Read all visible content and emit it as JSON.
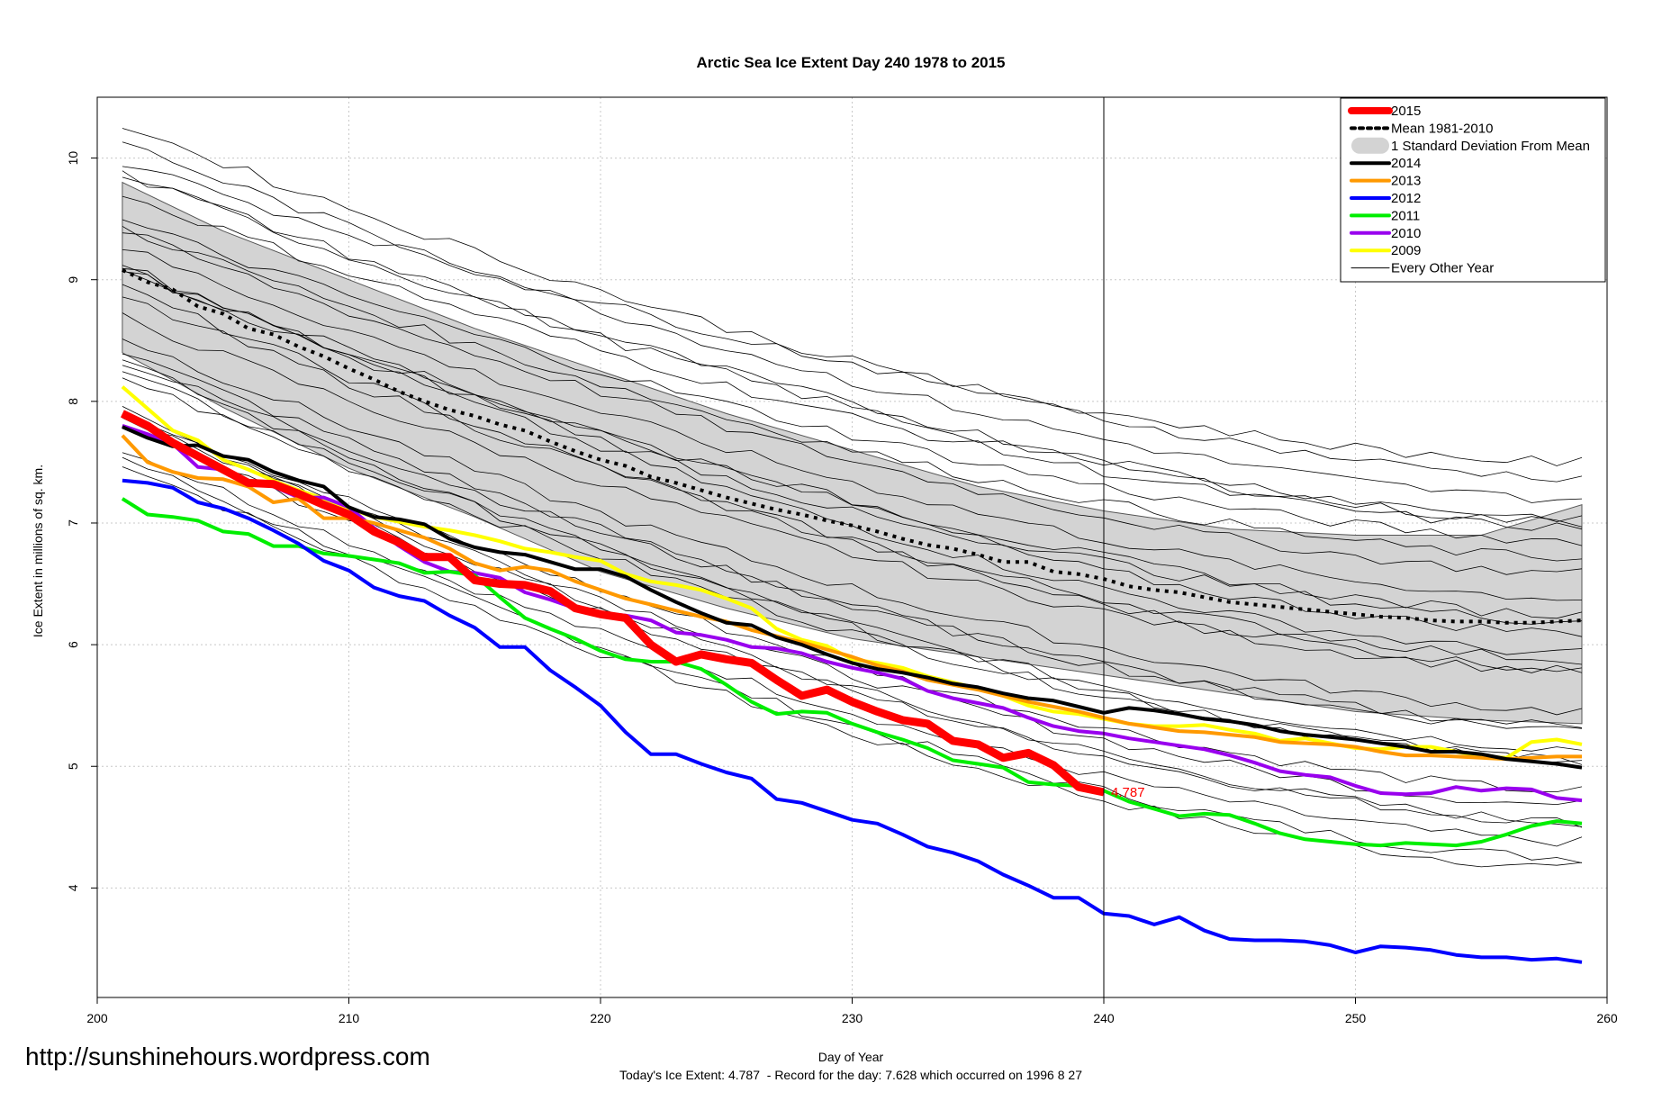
{
  "watermark": "http://sunshinehours.wordpress.com",
  "footer_line": "Today's Ice Extent: 4.787  - Record for the day: 7.628 which occurred on 1996 8 27",
  "colors": {
    "y2015": "#ff0000",
    "y2014": "#000000",
    "y2013": "#ff9900",
    "y2012": "#0000ff",
    "y2011": "#00ee00",
    "y2010": "#9900ee",
    "y2009": "#ffff00",
    "band": "#d3d3d3",
    "other": "#000000"
  },
  "chart_data": {
    "type": "line",
    "title": "Arctic Sea Ice Extent Day 240 1978 to 2015",
    "xlabel": "Day of Year",
    "ylabel": "Ice Extent in millions of sq. km.",
    "xlim": [
      200,
      260
    ],
    "ylim": [
      3.1,
      10.5
    ],
    "xticks": [
      200,
      210,
      220,
      230,
      240,
      250,
      260
    ],
    "yticks": [
      4,
      5,
      6,
      7,
      8,
      9,
      10
    ],
    "grid": true,
    "vline": 240,
    "annotation": {
      "x": 240,
      "y": 4.787,
      "text": "4.787"
    },
    "legend_position": "top-right",
    "legend": [
      "2015",
      "Mean 1981-2010",
      "1 Standard Deviation From Mean",
      "2014",
      "2013",
      "2012",
      "2011",
      "2010",
      "2009",
      "Every Other Year"
    ],
    "band": {
      "name": "1 Standard Deviation From Mean",
      "x": [
        201,
        205,
        210,
        215,
        220,
        225,
        230,
        235,
        240,
        245,
        250,
        255,
        259
      ],
      "upper": [
        9.8,
        9.4,
        9.0,
        8.6,
        8.25,
        7.9,
        7.6,
        7.3,
        7.1,
        6.95,
        6.9,
        6.9,
        7.15
      ],
      "lower": [
        8.4,
        7.95,
        7.45,
        7.05,
        6.6,
        6.3,
        6.05,
        5.9,
        5.75,
        5.6,
        5.45,
        5.38,
        5.35
      ]
    },
    "series": [
      {
        "name": "Mean 1981-2010",
        "x": [
          201,
          202,
          203,
          204,
          205,
          206,
          207,
          208,
          209,
          210,
          211,
          212,
          213,
          214,
          215,
          216,
          217,
          218,
          219,
          220,
          221,
          222,
          223,
          224,
          225,
          226,
          227,
          228,
          229,
          230,
          231,
          232,
          233,
          234,
          235,
          236,
          237,
          238,
          239,
          240,
          241,
          242,
          243,
          244,
          245,
          246,
          247,
          248,
          249,
          250,
          251,
          252,
          253,
          254,
          255,
          256,
          257,
          258,
          259
        ],
        "y": [
          9.08,
          8.98,
          8.92,
          8.78,
          8.72,
          8.6,
          8.55,
          8.45,
          8.37,
          8.27,
          8.18,
          8.08,
          8.0,
          7.93,
          7.88,
          7.81,
          7.76,
          7.67,
          7.59,
          7.52,
          7.47,
          7.38,
          7.33,
          7.27,
          7.21,
          7.16,
          7.11,
          7.07,
          7.02,
          6.98,
          6.93,
          6.87,
          6.82,
          6.79,
          6.74,
          6.68,
          6.68,
          6.6,
          6.58,
          6.54,
          6.48,
          6.45,
          6.43,
          6.39,
          6.35,
          6.33,
          6.31,
          6.29,
          6.27,
          6.25,
          6.23,
          6.22,
          6.2,
          6.19,
          6.19,
          6.18,
          6.18,
          6.19,
          6.2
        ]
      },
      {
        "name": "2014",
        "x": [
          201,
          202,
          203,
          204,
          205,
          206,
          207,
          208,
          209,
          210,
          211,
          212,
          213,
          214,
          215,
          216,
          217,
          218,
          219,
          220,
          221,
          222,
          223,
          224,
          225,
          226,
          227,
          228,
          229,
          230,
          231,
          232,
          233,
          234,
          235,
          236,
          237,
          238,
          239,
          240,
          241,
          242,
          243,
          244,
          245,
          246,
          247,
          248,
          249,
          250,
          251,
          252,
          253,
          254,
          255,
          256,
          257,
          258,
          259
        ],
        "y": [
          7.79,
          7.7,
          7.63,
          7.64,
          7.55,
          7.52,
          7.42,
          7.35,
          7.3,
          7.13,
          7.05,
          7.03,
          6.99,
          6.87,
          6.8,
          6.76,
          6.74,
          6.68,
          6.62,
          6.62,
          6.56,
          6.45,
          6.35,
          6.26,
          6.18,
          6.16,
          6.06,
          6.0,
          5.92,
          5.85,
          5.8,
          5.77,
          5.73,
          5.68,
          5.65,
          5.6,
          5.56,
          5.54,
          5.49,
          5.44,
          5.48,
          5.46,
          5.43,
          5.39,
          5.37,
          5.34,
          5.29,
          5.26,
          5.24,
          5.22,
          5.19,
          5.16,
          5.12,
          5.12,
          5.1,
          5.06,
          5.04,
          5.02,
          4.99
        ]
      },
      {
        "name": "2013",
        "x": [
          201,
          202,
          203,
          204,
          205,
          206,
          207,
          208,
          209,
          210,
          211,
          212,
          213,
          214,
          215,
          216,
          217,
          218,
          219,
          220,
          221,
          222,
          223,
          224,
          225,
          226,
          227,
          228,
          229,
          230,
          231,
          232,
          233,
          234,
          235,
          236,
          237,
          238,
          239,
          240,
          241,
          242,
          243,
          244,
          245,
          246,
          247,
          248,
          249,
          250,
          251,
          252,
          253,
          254,
          255,
          256,
          257,
          258,
          259
        ],
        "y": [
          7.72,
          7.5,
          7.42,
          7.37,
          7.36,
          7.3,
          7.17,
          7.2,
          7.04,
          7.04,
          7.0,
          6.94,
          6.88,
          6.79,
          6.67,
          6.61,
          6.64,
          6.61,
          6.52,
          6.45,
          6.38,
          6.33,
          6.28,
          6.23,
          6.19,
          6.12,
          6.07,
          6.02,
          5.96,
          5.9,
          5.83,
          5.78,
          5.71,
          5.67,
          5.63,
          5.58,
          5.53,
          5.49,
          5.45,
          5.4,
          5.35,
          5.32,
          5.29,
          5.28,
          5.26,
          5.24,
          5.2,
          5.19,
          5.18,
          5.16,
          5.12,
          5.09,
          5.09,
          5.08,
          5.07,
          5.06,
          5.07,
          5.08,
          5.08
        ]
      },
      {
        "name": "2012",
        "x": [
          201,
          202,
          203,
          204,
          205,
          206,
          207,
          208,
          209,
          210,
          211,
          212,
          213,
          214,
          215,
          216,
          217,
          218,
          219,
          220,
          221,
          222,
          223,
          224,
          225,
          226,
          227,
          228,
          229,
          230,
          231,
          232,
          233,
          234,
          235,
          236,
          237,
          238,
          239,
          240,
          241,
          242,
          243,
          244,
          245,
          246,
          247,
          248,
          249,
          250,
          251,
          252,
          253,
          254,
          255,
          256,
          257,
          258,
          259
        ],
        "y": [
          7.35,
          7.33,
          7.29,
          7.17,
          7.12,
          7.04,
          6.94,
          6.83,
          6.69,
          6.61,
          6.47,
          6.4,
          6.36,
          6.24,
          6.14,
          5.98,
          5.98,
          5.79,
          5.65,
          5.5,
          5.28,
          5.1,
          5.1,
          5.02,
          4.95,
          4.9,
          4.73,
          4.7,
          4.63,
          4.56,
          4.53,
          4.44,
          4.34,
          4.29,
          4.22,
          4.11,
          4.02,
          3.92,
          3.92,
          3.79,
          3.77,
          3.7,
          3.76,
          3.65,
          3.58,
          3.57,
          3.57,
          3.56,
          3.53,
          3.47,
          3.52,
          3.51,
          3.49,
          3.45,
          3.43,
          3.43,
          3.41,
          3.42,
          3.39
        ]
      },
      {
        "name": "2011",
        "x": [
          201,
          202,
          203,
          204,
          205,
          206,
          207,
          208,
          209,
          210,
          211,
          212,
          213,
          214,
          215,
          216,
          217,
          218,
          219,
          220,
          221,
          222,
          223,
          224,
          225,
          226,
          227,
          228,
          229,
          230,
          231,
          232,
          233,
          234,
          235,
          236,
          237,
          238,
          239,
          240,
          241,
          242,
          243,
          244,
          245,
          246,
          247,
          248,
          249,
          250,
          251,
          252,
          253,
          254,
          255,
          256,
          257,
          258,
          259
        ],
        "y": [
          7.2,
          7.07,
          7.05,
          7.02,
          6.93,
          6.91,
          6.81,
          6.81,
          6.75,
          6.73,
          6.7,
          6.67,
          6.59,
          6.6,
          6.57,
          6.39,
          6.22,
          6.13,
          6.05,
          5.95,
          5.88,
          5.86,
          5.86,
          5.8,
          5.67,
          5.53,
          5.43,
          5.45,
          5.44,
          5.35,
          5.28,
          5.22,
          5.15,
          5.05,
          5.02,
          4.99,
          4.87,
          4.85,
          4.84,
          4.8,
          4.71,
          4.65,
          4.59,
          4.61,
          4.6,
          4.53,
          4.45,
          4.4,
          4.38,
          4.36,
          4.35,
          4.37,
          4.36,
          4.35,
          4.38,
          4.44,
          4.51,
          4.55,
          4.53
        ]
      },
      {
        "name": "2010",
        "x": [
          201,
          202,
          203,
          204,
          205,
          206,
          207,
          208,
          209,
          210,
          211,
          212,
          213,
          214,
          215,
          216,
          217,
          218,
          219,
          220,
          221,
          222,
          223,
          224,
          225,
          226,
          227,
          228,
          229,
          230,
          231,
          232,
          233,
          234,
          235,
          236,
          237,
          238,
          239,
          240,
          241,
          242,
          243,
          244,
          245,
          246,
          247,
          248,
          249,
          250,
          251,
          252,
          253,
          254,
          255,
          256,
          257,
          258,
          259
        ],
        "y": [
          7.8,
          7.73,
          7.65,
          7.46,
          7.44,
          7.35,
          7.3,
          7.21,
          7.21,
          7.13,
          6.96,
          6.81,
          6.68,
          6.6,
          6.59,
          6.55,
          6.43,
          6.37,
          6.3,
          6.26,
          6.24,
          6.2,
          6.1,
          6.08,
          6.04,
          5.98,
          5.97,
          5.93,
          5.86,
          5.81,
          5.77,
          5.72,
          5.62,
          5.56,
          5.52,
          5.48,
          5.4,
          5.33,
          5.29,
          5.27,
          5.23,
          5.2,
          5.17,
          5.14,
          5.09,
          5.03,
          4.96,
          4.93,
          4.91,
          4.84,
          4.78,
          4.77,
          4.78,
          4.83,
          4.8,
          4.82,
          4.81,
          4.74,
          4.72
        ]
      },
      {
        "name": "2009",
        "x": [
          201,
          202,
          203,
          204,
          205,
          206,
          207,
          208,
          209,
          210,
          211,
          212,
          213,
          214,
          215,
          216,
          217,
          218,
          219,
          220,
          221,
          222,
          223,
          224,
          225,
          226,
          227,
          228,
          229,
          230,
          231,
          232,
          233,
          234,
          235,
          236,
          237,
          238,
          239,
          240,
          241,
          242,
          243,
          244,
          245,
          246,
          247,
          248,
          249,
          250,
          251,
          252,
          253,
          254,
          255,
          256,
          257,
          258,
          259
        ],
        "y": [
          8.12,
          7.94,
          7.76,
          7.68,
          7.52,
          7.44,
          7.35,
          7.27,
          7.2,
          7.12,
          7.05,
          7.01,
          6.97,
          6.94,
          6.9,
          6.85,
          6.79,
          6.76,
          6.72,
          6.69,
          6.58,
          6.52,
          6.49,
          6.45,
          6.38,
          6.3,
          6.13,
          6.04,
          5.99,
          5.88,
          5.85,
          5.81,
          5.74,
          5.69,
          5.64,
          5.58,
          5.5,
          5.45,
          5.43,
          5.39,
          5.35,
          5.33,
          5.33,
          5.34,
          5.3,
          5.27,
          5.21,
          5.23,
          5.19,
          5.15,
          5.14,
          5.16,
          5.16,
          5.12,
          5.08,
          5.07,
          5.2,
          5.22,
          5.18
        ]
      },
      {
        "name": "2015",
        "x": [
          201,
          202,
          203,
          204,
          205,
          206,
          207,
          208,
          209,
          210,
          211,
          212,
          213,
          214,
          215,
          216,
          217,
          218,
          219,
          220,
          221,
          222,
          223,
          224,
          225,
          226,
          227,
          228,
          229,
          230,
          231,
          232,
          233,
          234,
          235,
          236,
          237,
          238,
          239,
          240
        ],
        "y": [
          7.9,
          7.8,
          7.66,
          7.55,
          7.44,
          7.33,
          7.32,
          7.24,
          7.15,
          7.07,
          6.93,
          6.84,
          6.72,
          6.72,
          6.53,
          6.5,
          6.49,
          6.44,
          6.3,
          6.25,
          6.22,
          6.0,
          5.86,
          5.92,
          5.88,
          5.85,
          5.71,
          5.58,
          5.63,
          5.53,
          5.45,
          5.38,
          5.35,
          5.21,
          5.18,
          5.07,
          5.11,
          5.01,
          4.83,
          4.787
        ]
      }
    ]
  }
}
